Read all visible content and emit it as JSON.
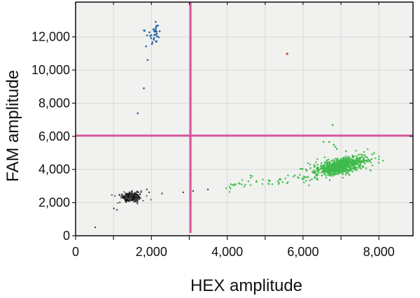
{
  "chart_data": {
    "type": "scatter",
    "xlabel": "HEX amplitude",
    "ylabel": "FAM amplitude",
    "xlim": [
      0,
      8900
    ],
    "ylim": [
      0,
      14100
    ],
    "plot_bg": "#f1f1ef",
    "grid_color": "#d8d8d6",
    "axis_color": "#1c1c1c",
    "x_axis": {
      "tick_values": [
        0,
        1000,
        2000,
        3000,
        4000,
        5000,
        6000,
        7000,
        8000
      ],
      "label_values": [
        0,
        2000,
        4000,
        6000,
        8000
      ],
      "grid_values": [
        1000,
        2000,
        3000,
        4000,
        5000,
        6000,
        7000,
        8000
      ]
    },
    "y_axis": {
      "tick_values": [
        0,
        2000,
        4000,
        6000,
        8000,
        10000,
        12000
      ],
      "label_values": [
        0,
        2000,
        4000,
        6000,
        8000,
        10000,
        12000
      ],
      "grid_values": [
        2000,
        4000,
        6000,
        8000,
        10000,
        12000
      ]
    },
    "thresholds": {
      "color": "#d6559c",
      "hex_threshold_x": 3030,
      "fam_threshold_y": 6040,
      "line_width": 3
    },
    "clusters": [
      {
        "name": "double-negative-droplets-core",
        "color": "#161616",
        "opacity": 0.85,
        "count": 400,
        "cx": 1450,
        "cy": 2320,
        "sx": 85,
        "sy": 100,
        "slope": 0,
        "size": 2.3,
        "seed": 11
      },
      {
        "name": "double-negative-droplets-fringe",
        "color": "#4d4d4d",
        "opacity": 0.9,
        "count": 50,
        "cx": 1470,
        "cy": 2340,
        "sx": 165,
        "sy": 175,
        "slope": 0,
        "size": 2.0,
        "seed": 22
      },
      {
        "name": "fam-positive-droplets",
        "color": "#2465a6",
        "opacity": 1,
        "count": 33,
        "cx": 2060,
        "cy": 12150,
        "sx": 115,
        "sy": 310,
        "slope": 0,
        "size": 2.4,
        "seed": 33
      },
      {
        "name": "hex-positive-droplets-core",
        "color": "#3eba4b",
        "opacity": 0.95,
        "count": 620,
        "cx": 6980,
        "cy": 4180,
        "sx": 310,
        "sy": 200,
        "slope": 0.5,
        "size": 2.4,
        "seed": 44
      },
      {
        "name": "hex-positive-droplets-halo",
        "color": "#3eba4b",
        "opacity": 0.95,
        "count": 150,
        "cx": 6850,
        "cy": 4150,
        "sx": 520,
        "sy": 330,
        "slope": 0.45,
        "size": 2.2,
        "seed": 55
      }
    ],
    "tails": [
      {
        "name": "hex-positive-rain-tail",
        "color": "#3eba4b",
        "opacity": 0.95,
        "count": 50,
        "x0": 3950,
        "x1": 6400,
        "y0": 3020,
        "y1": 3650,
        "jitter": 130,
        "size": 2.2,
        "seed": 66
      }
    ],
    "stray_points": [
      {
        "name": "fam-positive-strays",
        "color": "#2465a6",
        "size": 2.4,
        "points": [
          [
            1900,
            10600
          ],
          [
            1800,
            8900
          ],
          [
            1640,
            7390
          ]
        ]
      },
      {
        "name": "negative-strays",
        "color": "#4d4d4d",
        "size": 2.2,
        "points": [
          [
            517,
            507
          ],
          [
            1010,
            1650
          ],
          [
            1090,
            1560
          ],
          [
            1730,
            2690
          ],
          [
            1880,
            2800
          ],
          [
            1940,
            2620
          ],
          [
            2280,
            2550
          ],
          [
            2840,
            2620
          ],
          [
            3100,
            2700
          ],
          [
            3490,
            2790
          ]
        ]
      },
      {
        "name": "hex-positive-strays",
        "color": "#3eba4b",
        "size": 2.4,
        "points": [
          [
            6780,
            6680
          ],
          [
            6540,
            5660
          ],
          [
            6690,
            5660
          ],
          [
            6810,
            5490
          ],
          [
            6850,
            5370
          ],
          [
            6890,
            5240
          ],
          [
            7130,
            5100
          ]
        ]
      },
      {
        "name": "double-positive-droplet",
        "color": "#bf512c",
        "size": 3,
        "points": [
          [
            5580,
            10980
          ]
        ]
      }
    ]
  }
}
